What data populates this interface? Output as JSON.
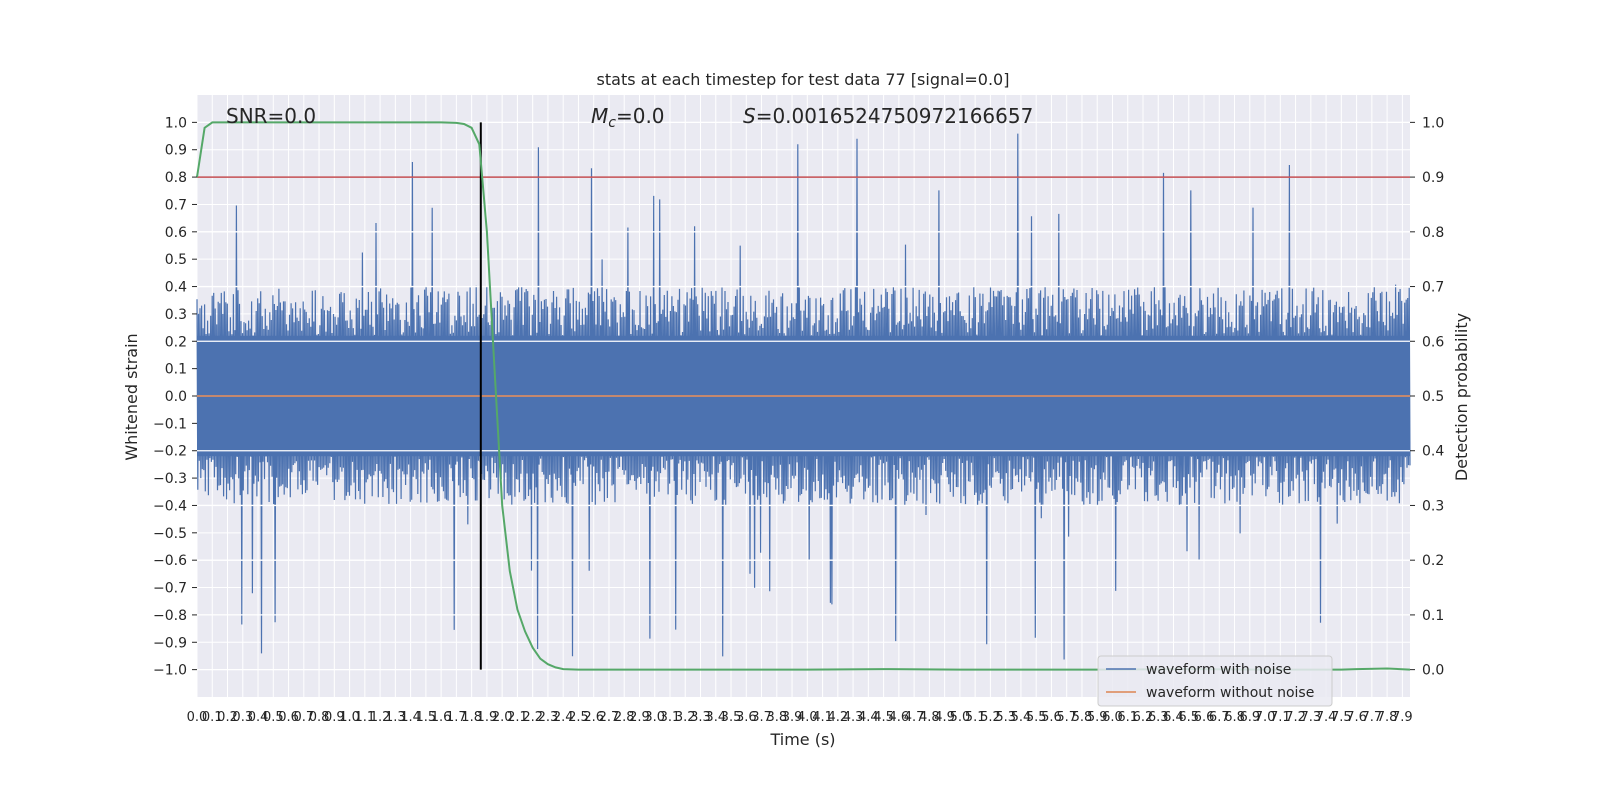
{
  "chart_data": {
    "type": "line",
    "title": "stats at each timestep for test data 77 [signal=0.0]",
    "xlabel": "Time (s)",
    "ylabel": "Whitened strain",
    "y2label": "Detection probability",
    "xlim": [
      0.0,
      7.95
    ],
    "ylim": [
      -1.1,
      1.1
    ],
    "y2lim": [
      -0.05,
      1.05
    ],
    "x_ticks": [
      "0.0",
      "0.1",
      "0.2",
      "0.3",
      "0.4",
      "0.5",
      "0.6",
      "0.7",
      "0.8",
      "0.9",
      "1.0",
      "1.1",
      "1.2",
      "1.3",
      "1.4",
      "1.5",
      "1.6",
      "1.7",
      "1.8",
      "1.9",
      "2.0",
      "2.1",
      "2.2",
      "2.3",
      "2.4",
      "2.5",
      "2.6",
      "2.7",
      "2.8",
      "2.9",
      "3.0",
      "3.1",
      "3.2",
      "3.3",
      "3.4",
      "3.5",
      "3.6",
      "3.7",
      "3.8",
      "3.9",
      "4.0",
      "4.1",
      "4.2",
      "4.3",
      "4.4",
      "4.5",
      "4.6",
      "4.7",
      "4.8",
      "4.9",
      "5.0",
      "5.1",
      "5.2",
      "5.3",
      "5.4",
      "5.5",
      "5.6",
      "5.7",
      "5.8",
      "5.9",
      "6.0",
      "6.1",
      "6.2",
      "6.3",
      "6.4",
      "6.5",
      "6.6",
      "6.7",
      "6.8",
      "6.9",
      "7.0",
      "7.1",
      "7.2",
      "7.3",
      "7.4",
      "7.5",
      "7.6",
      "7.7",
      "7.8",
      "7.9"
    ],
    "y_ticks": [
      "1.0",
      "0.9",
      "0.8",
      "0.7",
      "0.6",
      "0.5",
      "0.4",
      "0.3",
      "0.2",
      "0.1",
      "0.0",
      "−0.1",
      "−0.2",
      "−0.3",
      "−0.4",
      "−0.5",
      "−0.6",
      "−0.7",
      "−0.8",
      "−0.9",
      "−1.0"
    ],
    "y2_ticks": [
      "1.0",
      "0.9",
      "0.8",
      "0.7",
      "0.6",
      "0.5",
      "0.4",
      "0.3",
      "0.2",
      "0.1",
      "0.0"
    ],
    "annotations": {
      "snr": "SNR=0.0",
      "mc_symbol": "M",
      "mc_sub": "c",
      "mc_value": "=0.0",
      "s_symbol": "S",
      "s_value": "=0.0016524750972166657"
    },
    "legend": {
      "position": "lower-right",
      "entries": [
        "waveform with noise",
        "waveform without noise"
      ]
    },
    "threshold": {
      "y2": 0.9,
      "color": "#c44e52"
    },
    "vertical_marker": {
      "x": 1.86,
      "color": "#000000"
    },
    "series": [
      {
        "name": "waveform with noise",
        "color": "#4c72b0",
        "description": "whitened strain noise, approx. +/-0.4 envelope with spikes up to ~0.98 / down to ~-0.97",
        "envelope": {
          "upper": 0.4,
          "lower": -0.4,
          "peak_max": 0.98,
          "peak_min": -0.97
        }
      },
      {
        "name": "waveform without noise",
        "color": "#dd8452",
        "values": "flat at 0.0"
      },
      {
        "name": "Detection probability",
        "axis": "y2",
        "color": "#55a868",
        "x": [
          0.0,
          0.05,
          0.1,
          0.2,
          0.5,
          1.0,
          1.5,
          1.6,
          1.7,
          1.75,
          1.8,
          1.85,
          1.9,
          1.95,
          2.0,
          2.05,
          2.1,
          2.15,
          2.2,
          2.25,
          2.3,
          2.35,
          2.4,
          2.5,
          3.0,
          4.0,
          4.5,
          5.0,
          6.0,
          6.5,
          7.0,
          7.5,
          7.6,
          7.8,
          7.95
        ],
        "values": [
          0.9,
          0.99,
          1.0,
          1.0,
          1.0,
          1.0,
          1.0,
          1.0,
          0.999,
          0.997,
          0.99,
          0.96,
          0.8,
          0.55,
          0.3,
          0.18,
          0.11,
          0.07,
          0.04,
          0.02,
          0.01,
          0.004,
          0.001,
          0.0,
          0.0,
          0.0,
          0.001,
          0.0,
          0.0,
          0.001,
          0.0,
          0.0,
          0.001,
          0.002,
          0.0
        ]
      }
    ]
  }
}
